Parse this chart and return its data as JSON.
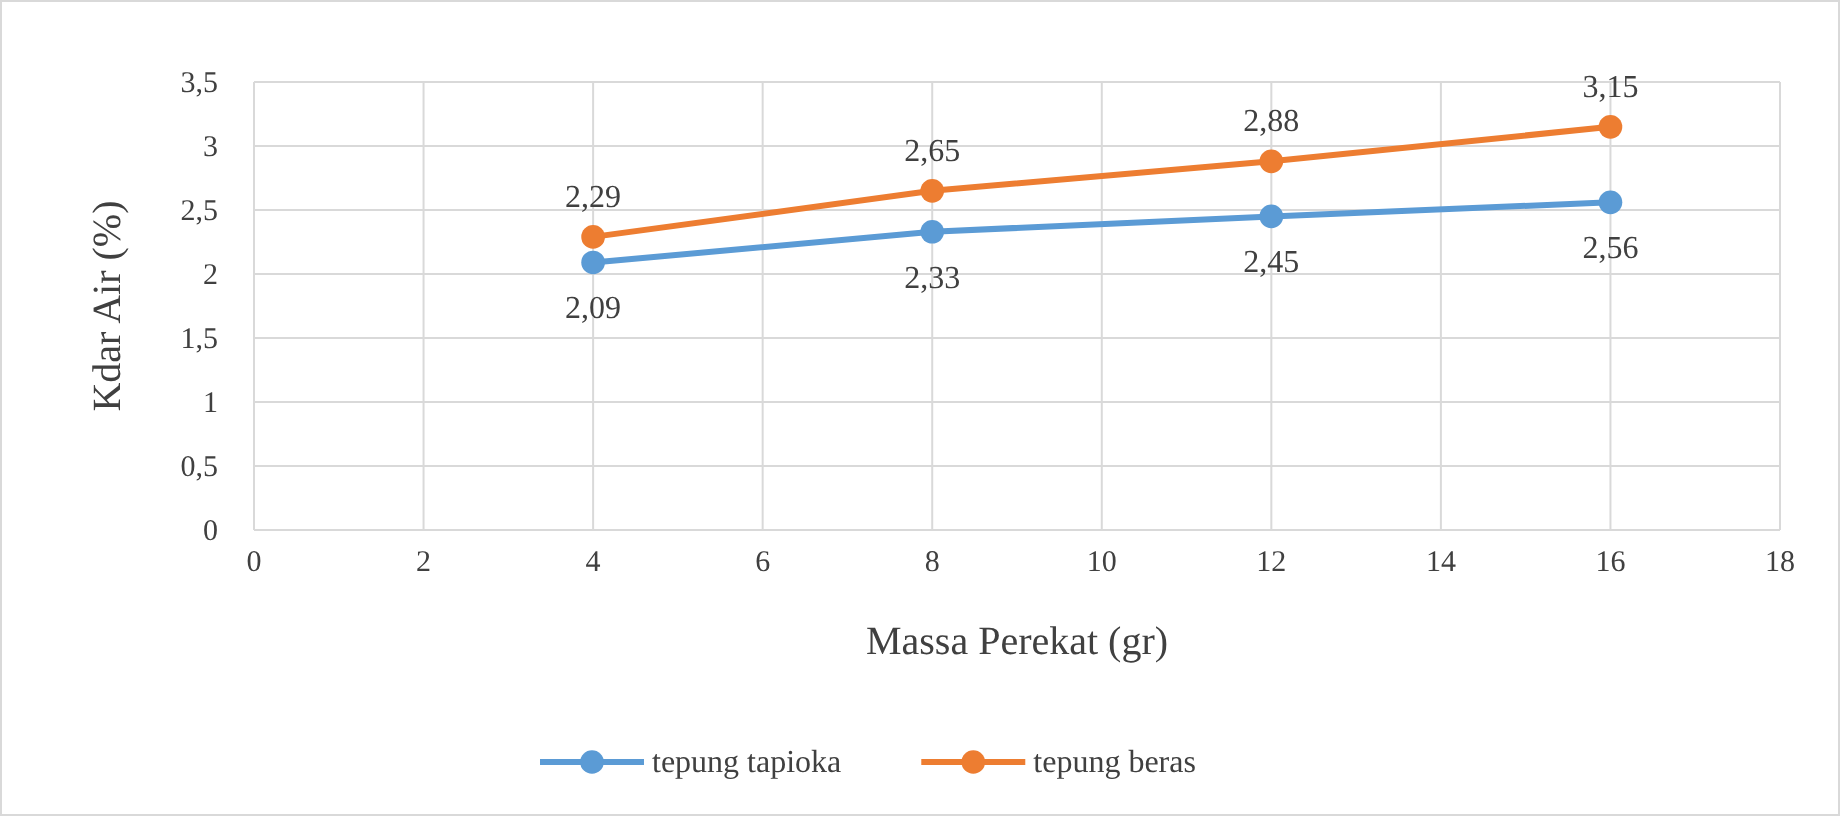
{
  "chart_data": {
    "type": "line",
    "xlabel": "Massa Perekat (gr)",
    "ylabel": "Kdar Air (%)",
    "x": [
      4,
      8,
      12,
      16
    ],
    "series": [
      {
        "name": "tepung tapioka",
        "color": "#5b9bd5",
        "values": [
          2.09,
          2.33,
          2.45,
          2.56
        ],
        "value_labels": [
          "2,09",
          "2,33",
          "2,45",
          "2,56"
        ]
      },
      {
        "name": "tepung beras",
        "color": "#ed7d31",
        "values": [
          2.29,
          2.65,
          2.88,
          3.15
        ],
        "value_labels": [
          "2,29",
          "2,65",
          "2,88",
          "3,15"
        ]
      }
    ],
    "xlim": [
      0,
      18
    ],
    "xticks": [
      0,
      2,
      4,
      6,
      8,
      10,
      12,
      14,
      16,
      18
    ],
    "ylim": [
      0,
      3.5
    ],
    "yticks": [
      0,
      {
        "value": 0.5,
        "label": "0,5"
      },
      1,
      {
        "value": 1.5,
        "label": "1,5"
      },
      2,
      {
        "value": 2.5,
        "label": "2,5"
      },
      3,
      {
        "value": 3.5,
        "label": "3,5"
      }
    ],
    "grid": true,
    "legend": "bottom",
    "marker": "circle",
    "line_style": "solid"
  }
}
